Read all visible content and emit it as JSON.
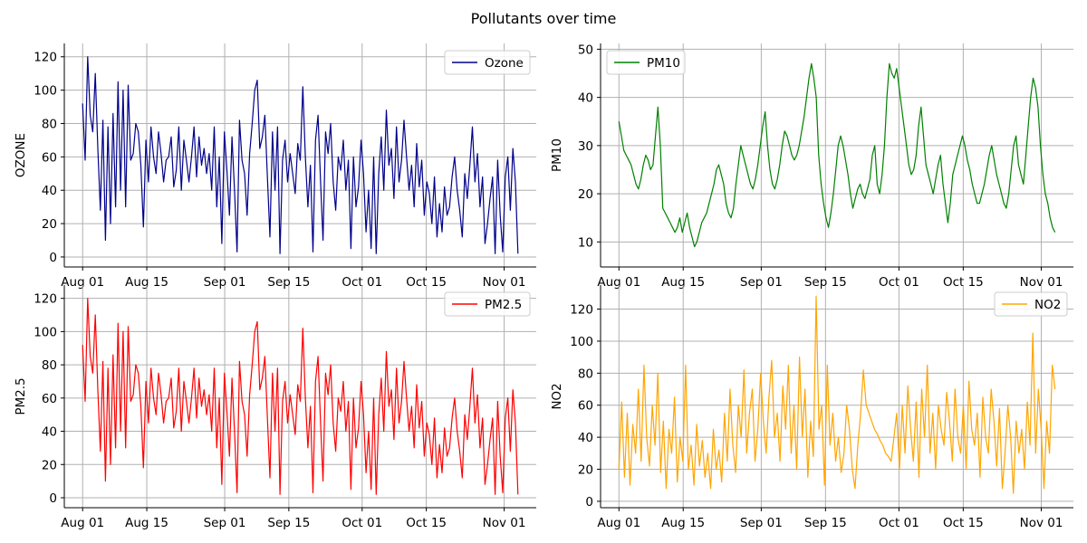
{
  "figure": {
    "title": "Pollutants over time"
  },
  "chart_data": [
    {
      "type": "line",
      "title": "",
      "xlabel": "",
      "ylabel": "OZONE",
      "x_ticks": [
        "Aug 01",
        "Aug 15",
        "Sep 01",
        "Sep 15",
        "Oct 01",
        "Oct 15",
        "Nov 01"
      ],
      "y_ticks": [
        0,
        20,
        40,
        60,
        80,
        100,
        120
      ],
      "xlim": [
        "2023-07-28",
        "2023-11-08"
      ],
      "ylim": [
        -6,
        128
      ],
      "grid": true,
      "legend": "upper right",
      "series": [
        {
          "name": "Ozone",
          "color": "#00008b",
          "x_start": "2023-08-01",
          "x_end": "2023-11-04",
          "values": [
            92,
            58,
            120,
            85,
            75,
            110,
            65,
            28,
            82,
            10,
            78,
            20,
            86,
            30,
            105,
            40,
            100,
            30,
            103,
            58,
            62,
            80,
            75,
            55,
            18,
            70,
            45,
            78,
            60,
            50,
            75,
            62,
            45,
            58,
            60,
            72,
            42,
            52,
            78,
            40,
            70,
            58,
            45,
            60,
            78,
            48,
            72,
            55,
            65,
            50,
            62,
            40,
            78,
            30,
            60,
            8,
            75,
            52,
            25,
            72,
            40,
            3,
            82,
            58,
            50,
            25,
            62,
            80,
            100,
            106,
            65,
            72,
            85,
            48,
            12,
            75,
            40,
            78,
            2,
            58,
            70,
            45,
            62,
            50,
            38,
            68,
            58,
            102,
            60,
            30,
            55,
            3,
            70,
            85,
            45,
            10,
            75,
            62,
            80,
            45,
            28,
            60,
            52,
            70,
            40,
            58,
            5,
            60,
            30,
            42,
            70,
            50,
            15,
            40,
            5,
            60,
            2,
            50,
            72,
            40,
            88,
            55,
            65,
            35,
            78,
            45,
            58,
            82,
            60,
            40,
            55,
            30,
            68,
            42,
            58,
            25,
            45,
            38,
            20,
            48,
            12,
            32,
            15,
            42,
            25,
            30,
            48,
            60,
            40,
            28,
            12,
            50,
            35,
            55,
            78,
            45,
            62,
            30,
            48,
            8,
            20,
            35,
            48,
            2,
            58,
            25,
            3,
            48,
            60,
            28,
            65,
            45,
            2
          ]
        }
      ]
    },
    {
      "type": "line",
      "title": "",
      "xlabel": "",
      "ylabel": "PM10",
      "x_ticks": [
        "Aug 01",
        "Aug 15",
        "Sep 01",
        "Sep 15",
        "Oct 01",
        "Oct 15",
        "Nov 01"
      ],
      "y_ticks": [
        10,
        20,
        30,
        40,
        50
      ],
      "xlim": [
        "2023-07-28",
        "2023-11-08"
      ],
      "ylim": [
        4.8,
        51.2
      ],
      "grid": true,
      "legend": "upper left",
      "series": [
        {
          "name": "PM10",
          "color": "#008000",
          "x_start": "2023-08-01",
          "x_end": "2023-11-04",
          "values": [
            35,
            32,
            29,
            28,
            27,
            26,
            24,
            22,
            21,
            23,
            26,
            28,
            27,
            25,
            26,
            32,
            38,
            30,
            17,
            16,
            15,
            14,
            13,
            12,
            13,
            15,
            12,
            14,
            16,
            13,
            11,
            9,
            10,
            12,
            14,
            15,
            16,
            18,
            20,
            22,
            25,
            26,
            24,
            22,
            18,
            16,
            15,
            17,
            22,
            26,
            30,
            28,
            26,
            24,
            22,
            21,
            23,
            26,
            30,
            34,
            37,
            30,
            25,
            22,
            21,
            23,
            26,
            30,
            33,
            32,
            30,
            28,
            27,
            28,
            30,
            33,
            36,
            40,
            44,
            47,
            44,
            40,
            28,
            22,
            18,
            15,
            13,
            16,
            20,
            25,
            30,
            32,
            30,
            27,
            24,
            20,
            17,
            19,
            21,
            22,
            20,
            19,
            21,
            23,
            28,
            30,
            22,
            20,
            24,
            30,
            40,
            47,
            45,
            44,
            46,
            42,
            38,
            34,
            30,
            26,
            24,
            25,
            28,
            34,
            38,
            32,
            26,
            24,
            22,
            20,
            23,
            26,
            28,
            22,
            18,
            14,
            18,
            24,
            26,
            28,
            30,
            32,
            30,
            27,
            25,
            22,
            20,
            18,
            18,
            20,
            22,
            25,
            28,
            30,
            27,
            24,
            22,
            20,
            18,
            17,
            20,
            25,
            30,
            32,
            26,
            24,
            22,
            28,
            34,
            40,
            44,
            42,
            38,
            30,
            24,
            20,
            18,
            15,
            13,
            12
          ]
        }
      ]
    },
    {
      "type": "line",
      "title": "",
      "xlabel": "",
      "ylabel": "PM2.5",
      "x_ticks": [
        "Aug 01",
        "Aug 15",
        "Sep 01",
        "Sep 15",
        "Oct 01",
        "Oct 15",
        "Nov 01"
      ],
      "y_ticks": [
        0,
        20,
        40,
        60,
        80,
        100,
        120
      ],
      "xlim": [
        "2023-07-28",
        "2023-11-08"
      ],
      "ylim": [
        -6,
        128
      ],
      "grid": true,
      "legend": "upper right",
      "series": [
        {
          "name": "PM2.5",
          "color": "#ff0000",
          "x_start": "2023-08-01",
          "x_end": "2023-11-04",
          "values": [
            92,
            58,
            120,
            85,
            75,
            110,
            65,
            28,
            82,
            10,
            78,
            20,
            86,
            30,
            105,
            40,
            100,
            30,
            103,
            58,
            62,
            80,
            75,
            55,
            18,
            70,
            45,
            78,
            60,
            50,
            75,
            62,
            45,
            58,
            60,
            72,
            42,
            52,
            78,
            40,
            70,
            58,
            45,
            60,
            78,
            48,
            72,
            55,
            65,
            50,
            62,
            40,
            78,
            30,
            60,
            8,
            75,
            52,
            25,
            72,
            40,
            3,
            82,
            58,
            50,
            25,
            62,
            80,
            100,
            106,
            65,
            72,
            85,
            48,
            12,
            75,
            40,
            78,
            2,
            58,
            70,
            45,
            62,
            50,
            38,
            68,
            58,
            102,
            60,
            30,
            55,
            3,
            70,
            85,
            45,
            10,
            75,
            62,
            80,
            45,
            28,
            60,
            52,
            70,
            40,
            58,
            5,
            60,
            30,
            42,
            70,
            50,
            15,
            40,
            5,
            60,
            2,
            50,
            72,
            40,
            88,
            55,
            65,
            35,
            78,
            45,
            58,
            82,
            60,
            40,
            55,
            30,
            68,
            42,
            58,
            25,
            45,
            38,
            20,
            48,
            12,
            32,
            15,
            42,
            25,
            30,
            48,
            60,
            40,
            28,
            12,
            50,
            35,
            55,
            78,
            45,
            62,
            30,
            48,
            8,
            20,
            35,
            48,
            2,
            58,
            25,
            3,
            48,
            60,
            28,
            65,
            45,
            2
          ]
        }
      ]
    },
    {
      "type": "line",
      "title": "",
      "xlabel": "",
      "ylabel": "NO2",
      "x_ticks": [
        "Aug 01",
        "Aug 15",
        "Sep 01",
        "Sep 15",
        "Oct 01",
        "Oct 15",
        "Nov 01"
      ],
      "y_ticks": [
        0,
        20,
        40,
        60,
        80,
        100,
        120
      ],
      "xlim": [
        "2023-07-28",
        "2023-11-08"
      ],
      "ylim": [
        -4,
        135
      ],
      "grid": true,
      "legend": "upper right",
      "series": [
        {
          "name": "NO2",
          "color": "#ffa500",
          "x_start": "2023-08-01",
          "x_end": "2023-11-04",
          "values": [
            20,
            62,
            15,
            55,
            10,
            48,
            30,
            70,
            25,
            85,
            40,
            22,
            60,
            35,
            80,
            18,
            50,
            8,
            45,
            30,
            65,
            12,
            40,
            25,
            85,
            20,
            35,
            10,
            48,
            22,
            38,
            15,
            30,
            8,
            45,
            20,
            32,
            12,
            55,
            25,
            70,
            35,
            18,
            60,
            40,
            82,
            30,
            55,
            70,
            25,
            45,
            80,
            50,
            30,
            65,
            88,
            40,
            55,
            25,
            72,
            45,
            85,
            30,
            60,
            20,
            90,
            40,
            70,
            15,
            50,
            28,
            128,
            45,
            60,
            10,
            85,
            35,
            55,
            25,
            40,
            18,
            30,
            60,
            45,
            20,
            8,
            35,
            55,
            82,
            60,
            55,
            50,
            45,
            42,
            38,
            35,
            30,
            28,
            25,
            40,
            55,
            20,
            60,
            30,
            72,
            45,
            25,
            62,
            15,
            70,
            40,
            85,
            30,
            55,
            20,
            60,
            45,
            35,
            68,
            50,
            25,
            70,
            40,
            30,
            60,
            20,
            75,
            45,
            35,
            55,
            15,
            65,
            40,
            30,
            70,
            50,
            22,
            58,
            8,
            30,
            60,
            40,
            5,
            50,
            30,
            45,
            20,
            62,
            35,
            105,
            30,
            70,
            45,
            8,
            50,
            30,
            85,
            70
          ]
        }
      ]
    }
  ]
}
